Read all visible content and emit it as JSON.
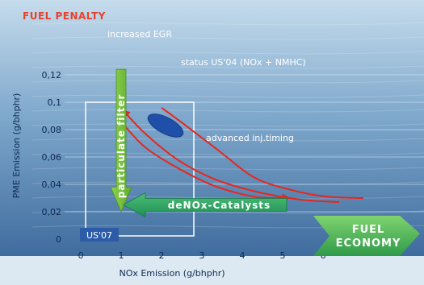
{
  "chart_data": {
    "type": "line",
    "title": "FUEL PENALTY",
    "xlabel": "NOx Emission (g/bhphr)",
    "ylabel": "PME Emission (g/bhphr)",
    "xlim": [
      0,
      7
    ],
    "ylim": [
      0,
      0.12
    ],
    "x_ticks": [
      "0",
      "1",
      "2",
      "3",
      "4",
      "5",
      "6"
    ],
    "y_ticks": [
      "0",
      "0,02",
      "0,04",
      "0,06",
      "0,08",
      "0,1",
      "0,12"
    ],
    "grid": true,
    "series": [
      {
        "points": [
          [
            1.05,
            0.094
          ],
          [
            1.6,
            0.077
          ],
          [
            2.4,
            0.058
          ],
          [
            3.3,
            0.044
          ],
          [
            4.3,
            0.035
          ],
          [
            5.4,
            0.029
          ],
          [
            6.4,
            0.027
          ]
        ]
      },
      {
        "points": [
          [
            1.05,
            0.084
          ],
          [
            1.6,
            0.067
          ],
          [
            2.4,
            0.052
          ],
          [
            3.3,
            0.039
          ],
          [
            4.3,
            0.031
          ],
          [
            5.15,
            0.03
          ]
        ]
      },
      {
        "points": [
          [
            2.0,
            0.096
          ],
          [
            2.6,
            0.083
          ],
          [
            3.4,
            0.065
          ],
          [
            4.3,
            0.045
          ],
          [
            5.2,
            0.036
          ],
          [
            6.1,
            0.031
          ],
          [
            7.0,
            0.03
          ]
        ]
      }
    ],
    "annotations": {
      "increased_egr": "increased EGR",
      "particulate_filter": "particulate filter",
      "status_us04": "status US'04 (NOx + NMHC)",
      "advanced_timing": "advanced inj.timing",
      "denox": "deNOx-Catalysts",
      "us07": "US'07",
      "fuel_economy_line1": "FUEL",
      "fuel_economy_line2": "ECONOMY"
    },
    "us07_box": {
      "x": [
        0,
        2.8
      ],
      "y": [
        0,
        0.1
      ]
    },
    "status_ellipse": {
      "x": 2.1,
      "y": 0.083
    }
  }
}
